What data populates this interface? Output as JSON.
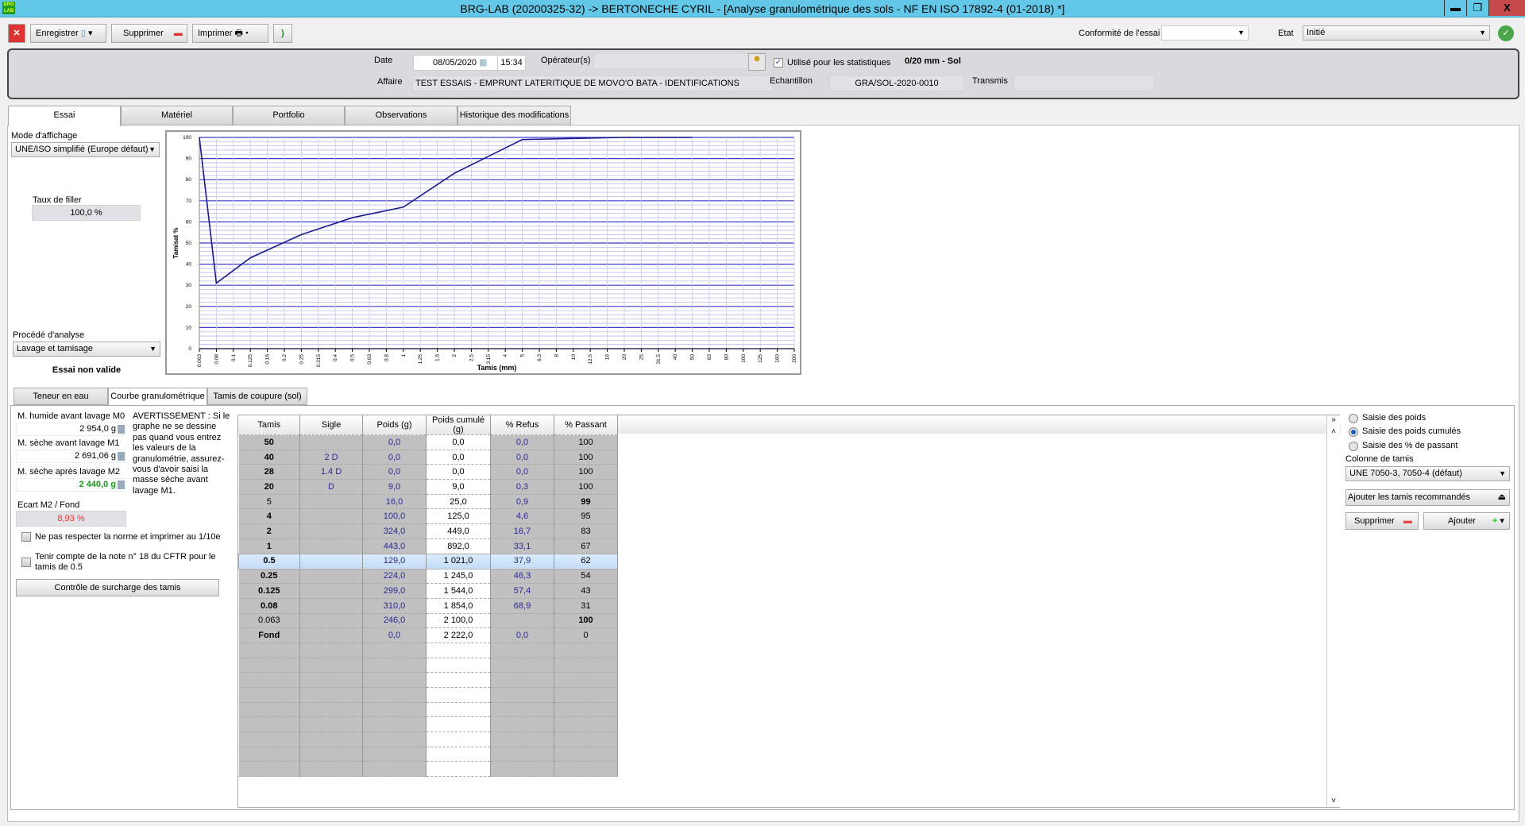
{
  "window": {
    "title": "BRG-LAB  (20200325-32)  ->   BERTONECHE CYRIL - [Analyse granulométrique des sols - NF EN ISO 17892-4 (01-2018) *]",
    "logo": "BRG LAB",
    "minimize": "▬",
    "restore": "❐",
    "close": "X"
  },
  "toolbar": {
    "save": "Enregistrer",
    "delete": "Supprimer",
    "print": "Imprimer",
    "conformity_label": "Conformité de l'essai",
    "conformity_value": "",
    "state_label": "Etat",
    "state_value": "Initié"
  },
  "header": {
    "date_label": "Date",
    "date": "08/05/2020",
    "time": "15:34",
    "operator_label": "Opérateur(s)",
    "operator": "",
    "stats_label": "Utilisé pour les statistiques",
    "stats_checked": true,
    "range": "0/20 mm - Sol",
    "affaire_label": "Affaire",
    "affaire": "TEST ESSAIS - EMPRUNT LATERITIQUE DE MOVO'O BATA - IDENTIFICATIONS",
    "echantillon_label": "Echantillon",
    "echantillon": "GRA/SOL-2020-0010",
    "transmis_label": "Transmis",
    "transmis": ""
  },
  "tabs": [
    "Essai",
    "Matériel",
    "Portfolio",
    "Observations",
    "Historique des modifications"
  ],
  "left": {
    "mode_label": "Mode d'affichage",
    "mode": "UNE/ISO simplifié (Europe défaut)",
    "filler_label": "Taux de filler",
    "filler": "100,0 %",
    "procede_label": "Procédé d'analyse",
    "procede": "Lavage et tamisage",
    "status": "Essai non valide"
  },
  "chart_data": {
    "type": "line",
    "xlabel": "Tamis (mm)",
    "ylabel": "Tamisat %",
    "xscale": "log",
    "ylim": [
      0,
      100
    ],
    "grid": true,
    "line_color": "#1a1a8c",
    "x_ticks": [
      "0.063",
      "0.08",
      "0.1",
      "0.125",
      "0.16",
      "0.2",
      "0.25",
      "0.315",
      "0.4",
      "0.5",
      "0.63",
      "0.8",
      "1",
      "1.25",
      "1.6",
      "2",
      "2.5",
      "3.15",
      "4",
      "5",
      "6.3",
      "8",
      "10",
      "12.5",
      "16",
      "20",
      "25",
      "31.5",
      "40",
      "50",
      "63",
      "80",
      "100",
      "125",
      "160",
      "200"
    ],
    "y_ticks": [
      "0",
      "10",
      "20",
      "30",
      "40",
      "50",
      "60",
      "70",
      "80",
      "90",
      "100"
    ],
    "series": [
      {
        "x": [
          0.063,
          0.08,
          0.125,
          0.25,
          0.5,
          1,
          2,
          4,
          5,
          20,
          28,
          40,
          50
        ],
        "y": [
          100,
          31,
          43,
          54,
          62,
          67,
          83,
          95,
          99,
          100,
          100,
          100,
          100
        ]
      }
    ]
  },
  "subtabs": [
    "Teneur en eau",
    "Courbe granulométrique",
    "Tamis de coupure (sol)"
  ],
  "masses": {
    "m0_label": "M. humide avant lavage M0",
    "m0": "2 954,0 g",
    "m1_label": "M. sèche avant lavage M1",
    "m1": "2 691,06 g",
    "m2_label": "M. sèche après lavage M2",
    "m2": "2 440,0 g",
    "ecart_label": "Ecart M2 / Fond",
    "ecart": "8,93 %",
    "warning": "AVERTISSEMENT : Si le graphe ne se dessine pas quand vous entrez les valeurs de la granulométrie, assurez-vous d'avoir saisi la masse sèche avant lavage M1.",
    "opt1": "Ne pas respecter la norme et imprimer au 1/10e",
    "opt2": "Tenir compte de la note n° 18 du CFTR pour le tamis de 0.5",
    "control_btn": "Contrôle de surcharge des tamis"
  },
  "table": {
    "headers": [
      "Tamis",
      "Sigle",
      "Poids (g)",
      "Poids cumulé (g)",
      "% Refus",
      "% Passant"
    ],
    "rows": [
      [
        "50",
        "",
        "0,0",
        "0,0",
        "0,0",
        "100"
      ],
      [
        "40",
        "2 D",
        "0,0",
        "0,0",
        "0,0",
        "100"
      ],
      [
        "28",
        "1.4 D",
        "0,0",
        "0,0",
        "0,0",
        "100"
      ],
      [
        "20",
        "D",
        "9,0",
        "9,0",
        "0,3",
        "100"
      ],
      [
        "5",
        "",
        "16,0",
        "25,0",
        "0,9",
        "99"
      ],
      [
        "4",
        "",
        "100,0",
        "125,0",
        "4,6",
        "95"
      ],
      [
        "2",
        "",
        "324,0",
        "449,0",
        "16,7",
        "83"
      ],
      [
        "1",
        "",
        "443,0",
        "892,0",
        "33,1",
        "67"
      ],
      [
        "0.5",
        "",
        "129,0",
        "1 021,0",
        "37,9",
        "62"
      ],
      [
        "0.25",
        "",
        "224,0",
        "1 245,0",
        "46,3",
        "54"
      ],
      [
        "0.125",
        "",
        "299,0",
        "1 544,0",
        "57,4",
        "43"
      ],
      [
        "0.08",
        "",
        "310,0",
        "1 854,0",
        "68,9",
        "31"
      ],
      [
        "0.063",
        "",
        "246,0",
        "2 100,0",
        "",
        "100"
      ],
      [
        "Fond",
        "",
        "0,0",
        "2 222,0",
        "0,0",
        "0"
      ]
    ],
    "selected_row": 8
  },
  "right": {
    "r1": "Saisie des poids",
    "r2": "Saisie des poids cumulés",
    "r3": "Saisie des % de passant",
    "selected": 1,
    "col_label": "Colonne de tamis",
    "col_value": "UNE 7050-3, 7050-4 (défaut)",
    "add_recommended": "Ajouter les tamis recommandés",
    "delete": "Supprimer",
    "add": "Ajouter"
  }
}
